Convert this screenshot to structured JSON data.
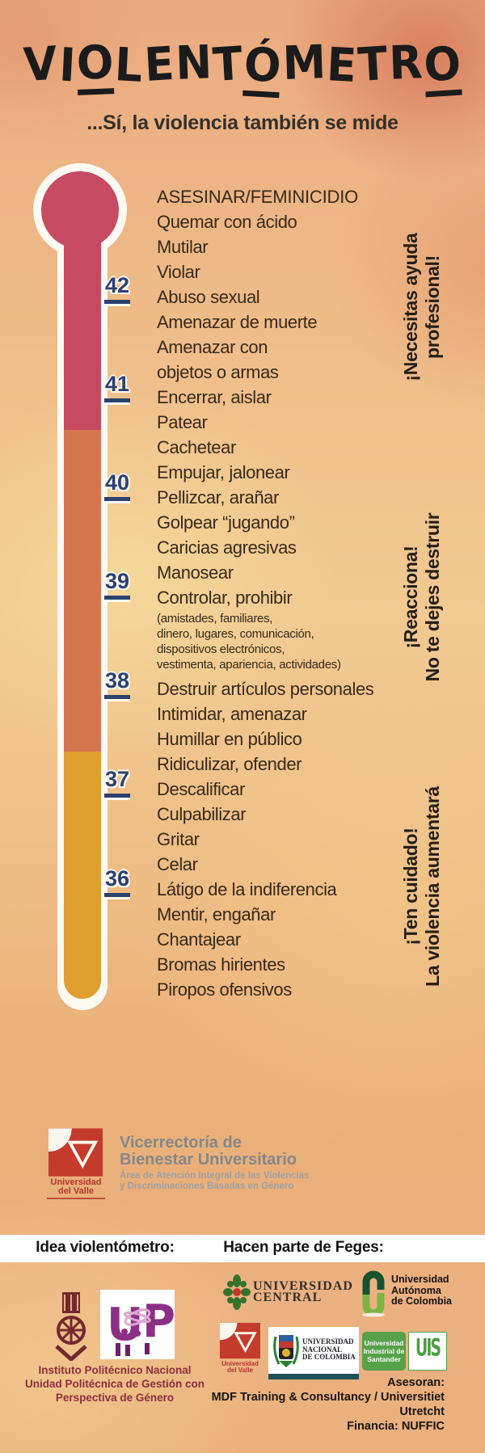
{
  "title": {
    "letters": [
      {
        "ch": "V"
      },
      {
        "ch": "I"
      },
      {
        "ch": "O",
        "underline": true
      },
      {
        "ch": "L"
      },
      {
        "ch": "E"
      },
      {
        "ch": "N"
      },
      {
        "ch": "T"
      },
      {
        "ch": "Ó",
        "underline": true
      },
      {
        "ch": "M"
      },
      {
        "ch": "E"
      },
      {
        "ch": "T"
      },
      {
        "ch": "R"
      },
      {
        "ch": "O",
        "underline": true
      }
    ],
    "subtitle": "...Sí, la violencia también se mide"
  },
  "thermometer": {
    "colors": {
      "severe": "#c64a62",
      "medium": "#d3754e",
      "mild": "#dfa02f"
    },
    "ticks": [
      {
        "label": "42"
      },
      {
        "label": "41"
      },
      {
        "label": "40"
      },
      {
        "label": "39"
      },
      {
        "label": "38"
      },
      {
        "label": "37"
      },
      {
        "label": "36"
      }
    ]
  },
  "list": {
    "items": [
      {
        "text": "ASESINAR/FEMINICIDIO",
        "caps": true
      },
      {
        "text": "Quemar con ácido"
      },
      {
        "text": "Mutilar"
      },
      {
        "text": "Violar"
      },
      {
        "text": "Abuso sexual"
      },
      {
        "text": "Amenazar de muerte"
      },
      {
        "text": "Amenazar con"
      },
      {
        "text": "objetos o armas"
      },
      {
        "text": "Encerrar, aislar"
      },
      {
        "text": "Patear"
      },
      {
        "text": "Cachetear"
      },
      {
        "text": "Empujar, jalonear"
      },
      {
        "text": "Pellizcar, arañar"
      },
      {
        "text": "Golpear “jugando”"
      },
      {
        "text": "Caricias agresivas"
      },
      {
        "text": "Manosear"
      },
      {
        "text": "Controlar, prohibir",
        "notes": [
          "(amistades, familiares,",
          "dinero, lugares, comunicación,",
          "dispositivos electrónicos,",
          "vestimenta, apariencia, actividades)"
        ]
      },
      {
        "text": "Destruir artículos personales"
      },
      {
        "text": "Intimidar, amenazar"
      },
      {
        "text": "Humillar en público"
      },
      {
        "text": "Ridiculizar, ofender"
      },
      {
        "text": "Descalificar"
      },
      {
        "text": "Culpabilizar"
      },
      {
        "text": "Gritar"
      },
      {
        "text": "Celar"
      },
      {
        "text": "Látigo de la indiferencia"
      },
      {
        "text": "Mentir, engañar"
      },
      {
        "text": "Chantajear"
      },
      {
        "text": "Bromas hirientes"
      },
      {
        "text": "Piropos ofensivos"
      }
    ]
  },
  "zones": [
    {
      "lines": [
        "¡Necesitas ayuda",
        "profesional!"
      ]
    },
    {
      "lines": [
        "¡Reacciona!",
        "No te dejes destruir"
      ]
    },
    {
      "lines": [
        "¡Ten cuidado!",
        "La violencia aumentará"
      ]
    }
  ],
  "branding": {
    "logo_caption": [
      "Universidad",
      "del Valle"
    ],
    "dept_lines": [
      "Vicerrectoría de",
      "Bienestar Universitario"
    ],
    "area_lines": [
      "Área de Atención Integral de las Violencias",
      "y Discriminaciones Basadas en Género"
    ]
  },
  "footer": {
    "idea_heading": "Idea violentómetro:",
    "feges_heading": "Hacen parte de Feges:",
    "ipn_caption": [
      "Instituto Politécnico Nacional",
      "Unidad Politécnica de Gestión con",
      "Perspectiva de Género"
    ],
    "central_lines": [
      "UNIVERSIDAD",
      "CENTRAL"
    ],
    "autonoma_lines": [
      "Universidad",
      "Autónoma",
      "de Colombia"
    ],
    "univalle_small_caption": [
      "Universidad",
      "del Valle"
    ],
    "nacional_lines": [
      "UNIVERSIDAD",
      "NACIONAL",
      "DE COLOMBIA"
    ],
    "uis_lines": [
      "Universidad",
      "Industrial de",
      "Santander"
    ],
    "uis_monogram": "UIS",
    "asesoran_lines": [
      "Asesoran:",
      "MDF Training & Consultancy / Universitiet Utretcht",
      "Financia: NUFFIC"
    ]
  }
}
